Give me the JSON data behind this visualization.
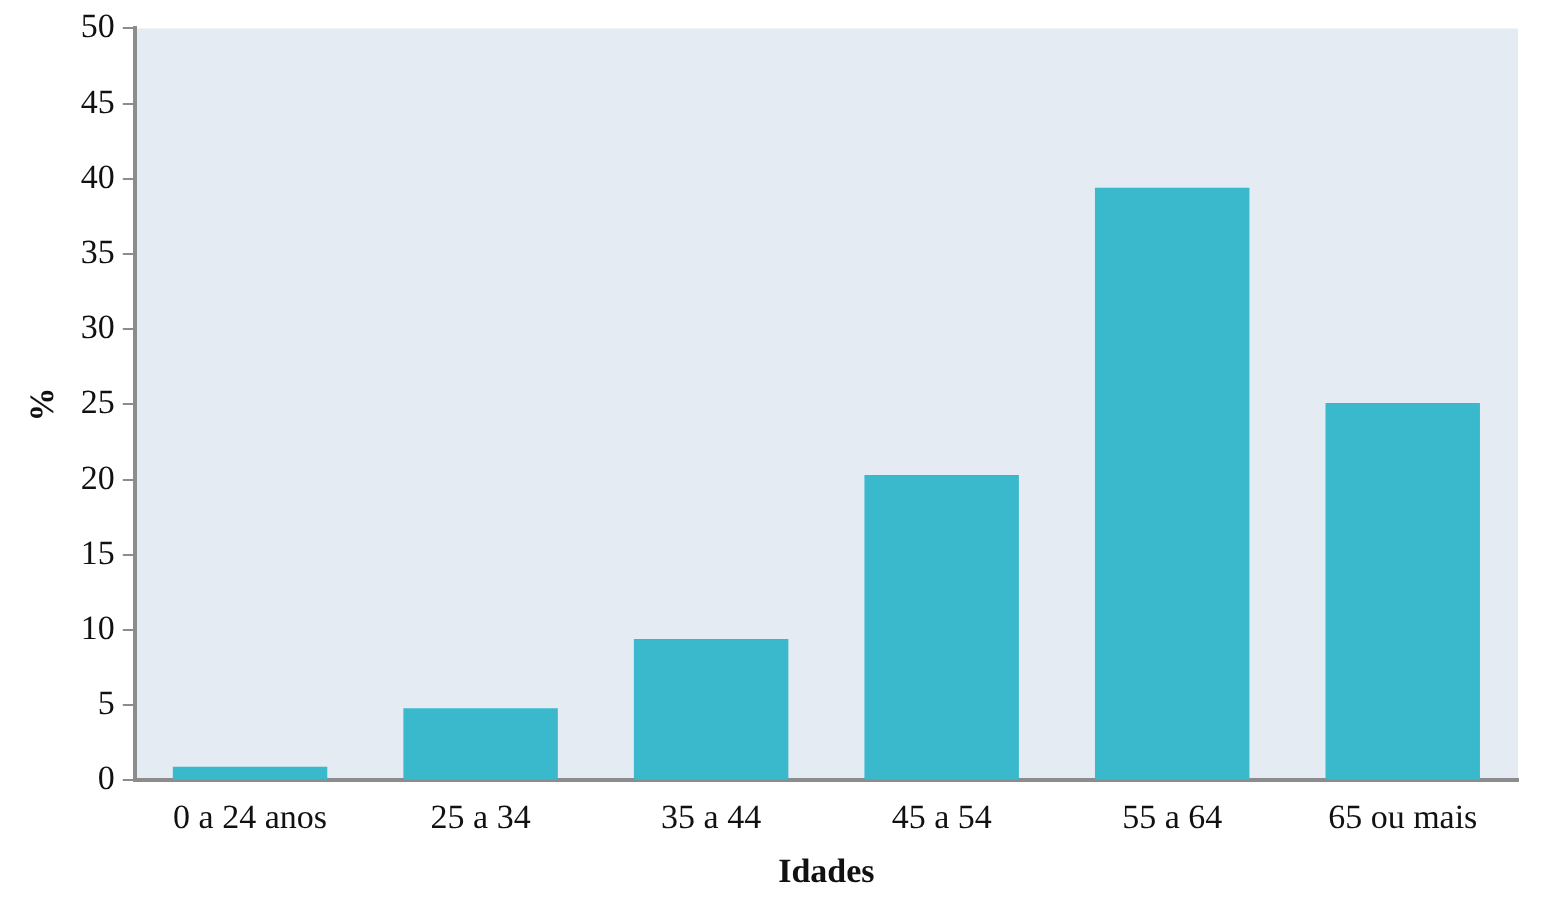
{
  "chart_data": {
    "type": "bar",
    "xlabel": "Idades",
    "ylabel": "%",
    "categories": [
      "0 a 24 anos",
      "25 a 34",
      "35 a 44",
      "45 a 54",
      "55 a 64",
      "65 ou mais"
    ],
    "values": [
      0.9,
      4.8,
      9.4,
      20.3,
      39.4,
      25.1
    ],
    "color": "#3ab9cd",
    "ylim": [
      0,
      50
    ],
    "yticks": [
      0,
      5,
      10,
      15,
      20,
      25,
      30,
      35,
      40,
      45,
      50
    ],
    "grid": false,
    "legend": false
  }
}
